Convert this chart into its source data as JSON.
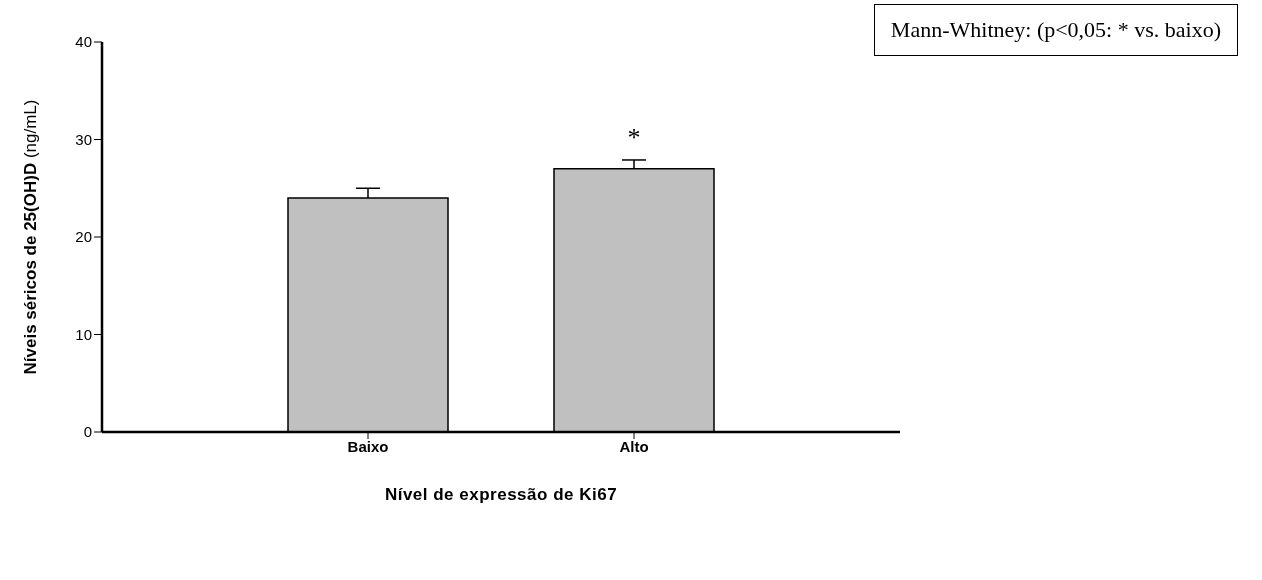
{
  "chart_data": {
    "type": "bar",
    "xlabel": "Nível de expressão de Ki67",
    "ylabel": "Níveis séricos de 25(OH)D (ng/mL)",
    "categories": [
      "Baixo",
      "Alto"
    ],
    "values": [
      24,
      27
    ],
    "errors": [
      1,
      0.9
    ],
    "color": "#c0c0c0",
    "ylim": [
      0,
      40
    ],
    "yticks": [
      0,
      10,
      20,
      30,
      40
    ],
    "annotations": [
      "Mann-Whitney: (p<0,05: * vs. baixo)",
      "*"
    ]
  }
}
